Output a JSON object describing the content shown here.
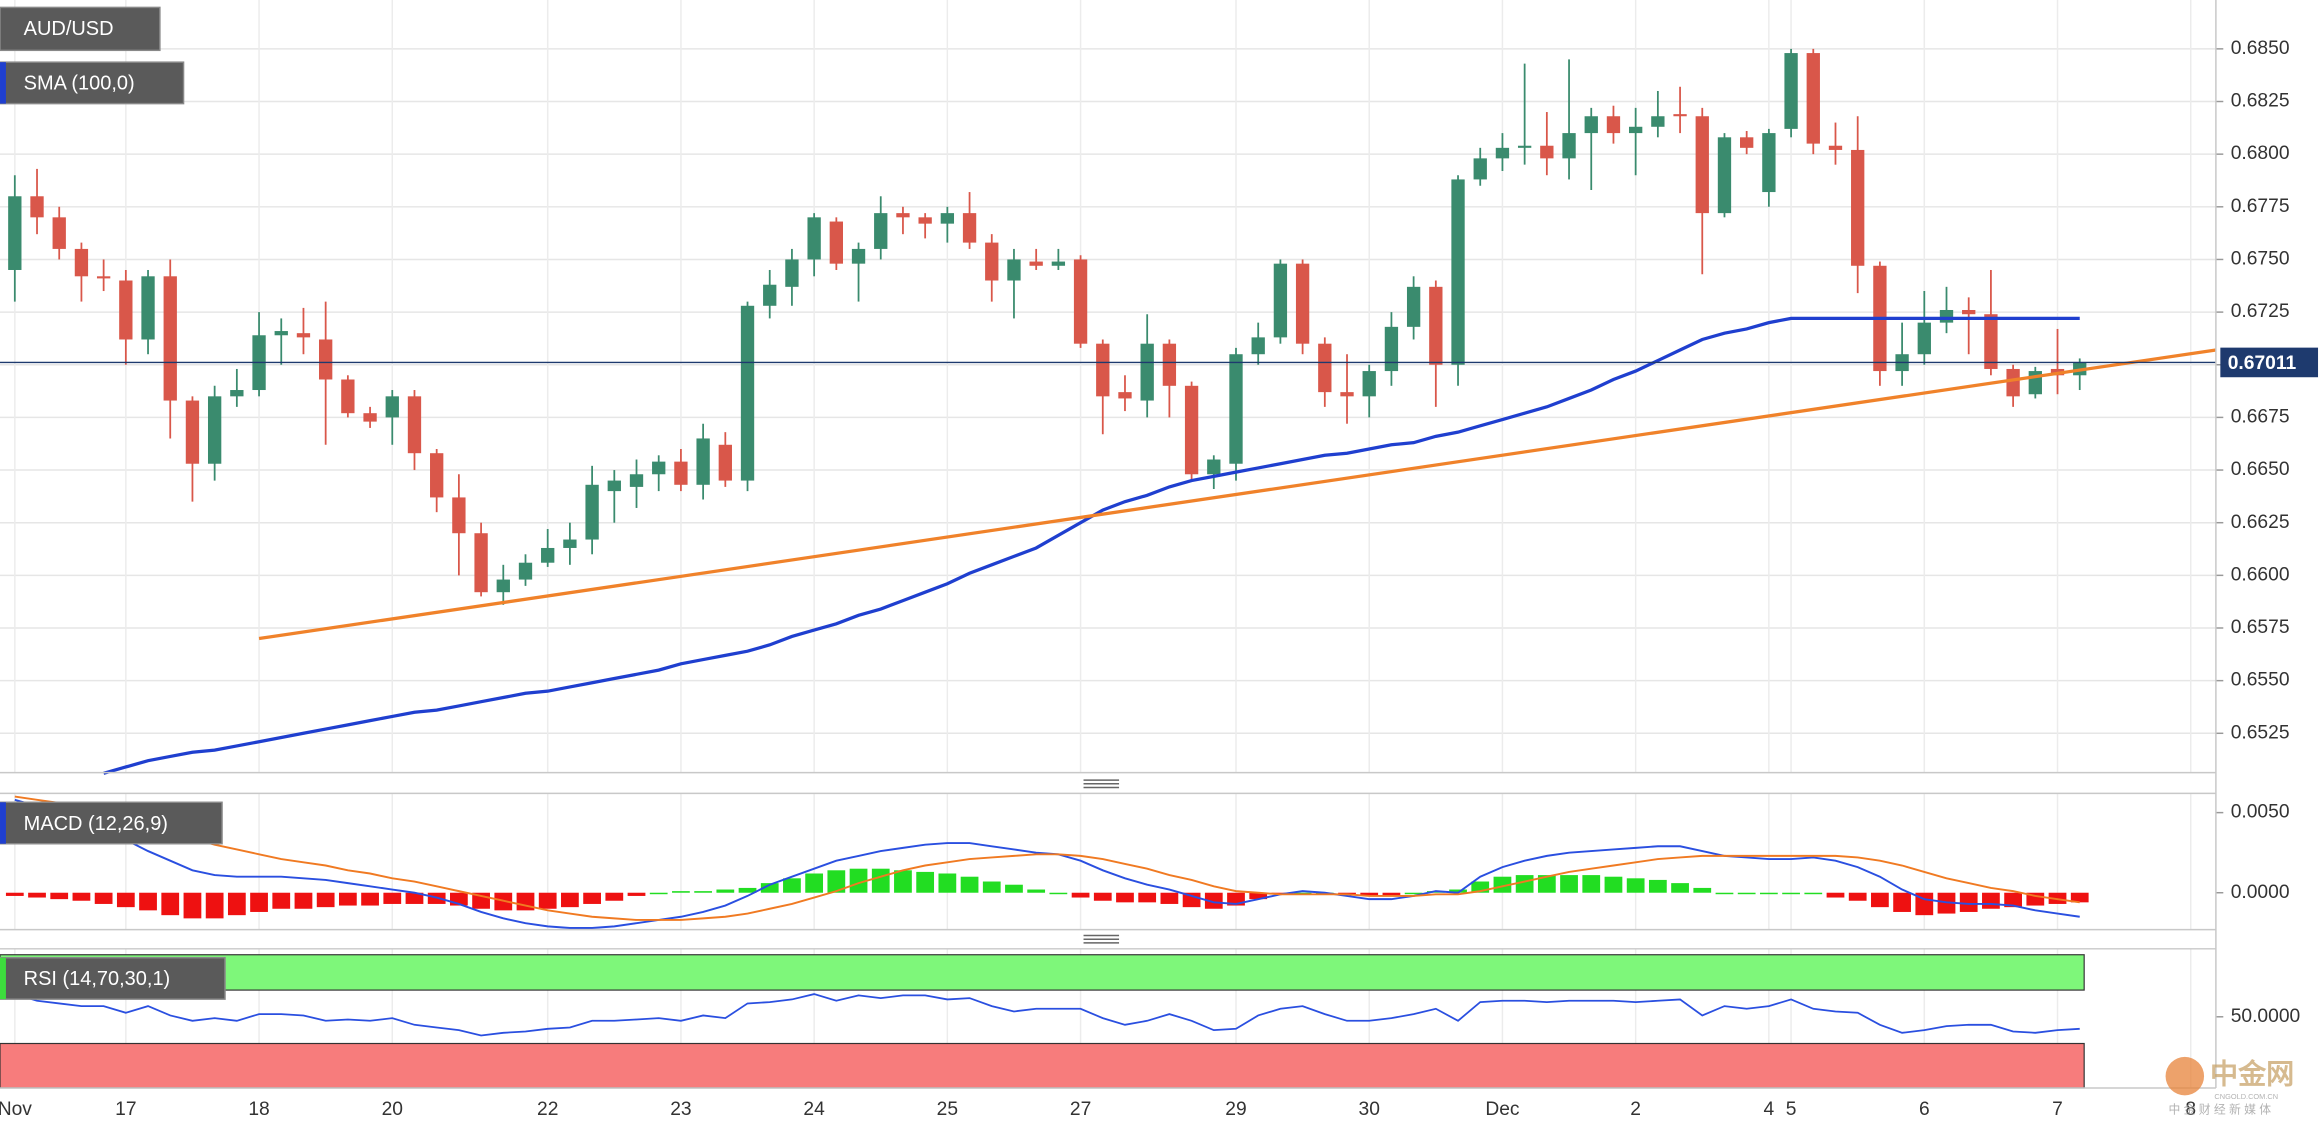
{
  "chart_data": [
    {
      "type": "candlestick",
      "title": "AUD/USD",
      "up_color": "#3a8b6e",
      "down_color": "#d9574a",
      "xlim": [
        -0.667,
        99.133
      ],
      "ylim": [
        0.65063,
        0.68732
      ],
      "yticks": [
        {
          "value": 0.6525,
          "label": "0.6525"
        },
        {
          "value": 0.655,
          "label": "0.6550"
        },
        {
          "value": 0.6575,
          "label": "0.6575"
        },
        {
          "value": 0.66,
          "label": "0.6600"
        },
        {
          "value": 0.6625,
          "label": "0.6625"
        },
        {
          "value": 0.665,
          "label": "0.6650"
        },
        {
          "value": 0.6675,
          "label": "0.6675"
        },
        {
          "value": 0.67,
          "label": "0.6700"
        },
        {
          "value": 0.6725,
          "label": "0.6725"
        },
        {
          "value": 0.675,
          "label": "0.6750"
        },
        {
          "value": 0.6775,
          "label": "0.6775"
        },
        {
          "value": 0.68,
          "label": "0.6800"
        },
        {
          "value": 0.6825,
          "label": "0.6825"
        },
        {
          "value": 0.685,
          "label": "0.6850"
        }
      ],
      "grid": true,
      "last_price": 0.67011,
      "last_price_color": "#1e3a6e",
      "candles": {
        "open": [
          0.6745,
          0.678,
          0.677,
          0.6755,
          0.6742,
          0.674,
          0.6712,
          0.6742,
          0.6683,
          0.6653,
          0.6685,
          0.6688,
          0.6714,
          0.6715,
          0.6712,
          0.6693,
          0.6677,
          0.6675,
          0.6685,
          0.6658,
          0.6637,
          0.662,
          0.6592,
          0.6598,
          0.6606,
          0.6613,
          0.6617,
          0.664,
          0.6642,
          0.6648,
          0.6654,
          0.6643,
          0.6662,
          0.6645,
          0.6728,
          0.6737,
          0.675,
          0.6768,
          0.6748,
          0.6755,
          0.6772,
          0.677,
          0.6767,
          0.6772,
          0.6758,
          0.674,
          0.6749,
          0.6747,
          0.675,
          0.671,
          0.6687,
          0.6683,
          0.671,
          0.669,
          0.6648,
          0.6653,
          0.6705,
          0.6713,
          0.6748,
          0.671,
          0.6687,
          0.6685,
          0.6697,
          0.6718,
          0.6737,
          0.67,
          0.6788,
          0.6798,
          0.6803,
          0.6804,
          0.6798,
          0.681,
          0.6818,
          0.681,
          0.6813,
          0.6819,
          0.6818,
          0.6772,
          0.6808,
          0.6782,
          0.6812,
          0.6848,
          0.6804,
          0.6802,
          0.6747,
          0.6697,
          0.6705,
          0.672,
          0.6726,
          0.6724,
          0.6698,
          0.6686,
          0.6698,
          0.6695
        ],
        "high": [
          0.679,
          0.6793,
          0.6775,
          0.6758,
          0.675,
          0.6745,
          0.6745,
          0.675,
          0.6685,
          0.669,
          0.6698,
          0.6725,
          0.6722,
          0.6727,
          0.673,
          0.6695,
          0.668,
          0.6688,
          0.6688,
          0.666,
          0.6648,
          0.6625,
          0.6605,
          0.661,
          0.6622,
          0.6625,
          0.6652,
          0.665,
          0.6655,
          0.6657,
          0.666,
          0.6672,
          0.6668,
          0.673,
          0.6745,
          0.6755,
          0.6772,
          0.677,
          0.6758,
          0.678,
          0.6775,
          0.6772,
          0.6775,
          0.6782,
          0.6762,
          0.6755,
          0.6755,
          0.6755,
          0.6752,
          0.6712,
          0.6695,
          0.6724,
          0.6712,
          0.6692,
          0.6657,
          0.6708,
          0.672,
          0.675,
          0.675,
          0.6713,
          0.6705,
          0.67,
          0.6725,
          0.6742,
          0.674,
          0.679,
          0.6803,
          0.681,
          0.6843,
          0.682,
          0.6845,
          0.6822,
          0.6823,
          0.6822,
          0.683,
          0.6832,
          0.6822,
          0.681,
          0.6811,
          0.6812,
          0.685,
          0.685,
          0.6815,
          0.6818,
          0.6749,
          0.672,
          0.6735,
          0.6737,
          0.6732,
          0.6745,
          0.67,
          0.6699,
          0.6717,
          0.6703
        ],
        "low": [
          0.673,
          0.6762,
          0.675,
          0.673,
          0.6735,
          0.67,
          0.6705,
          0.6665,
          0.6635,
          0.6645,
          0.668,
          0.6685,
          0.67,
          0.6705,
          0.6662,
          0.6675,
          0.667,
          0.6662,
          0.665,
          0.663,
          0.66,
          0.659,
          0.6586,
          0.6595,
          0.6604,
          0.6605,
          0.661,
          0.6625,
          0.6632,
          0.664,
          0.664,
          0.6636,
          0.6642,
          0.664,
          0.6722,
          0.6728,
          0.6742,
          0.6745,
          0.673,
          0.675,
          0.6762,
          0.676,
          0.6758,
          0.6755,
          0.673,
          0.6722,
          0.6745,
          0.6745,
          0.6708,
          0.6667,
          0.6678,
          0.6675,
          0.6675,
          0.6645,
          0.6641,
          0.6645,
          0.67,
          0.671,
          0.6705,
          0.668,
          0.6672,
          0.6675,
          0.669,
          0.6712,
          0.668,
          0.669,
          0.6785,
          0.6792,
          0.6795,
          0.679,
          0.6788,
          0.6783,
          0.6805,
          0.679,
          0.6808,
          0.681,
          0.6743,
          0.677,
          0.68,
          0.6775,
          0.6808,
          0.68,
          0.6795,
          0.6734,
          0.669,
          0.669,
          0.67,
          0.6715,
          0.6705,
          0.6695,
          0.668,
          0.6684,
          0.6686,
          0.6688
        ],
        "close": [
          0.678,
          0.677,
          0.6755,
          0.6742,
          0.6741,
          0.6712,
          0.6742,
          0.6683,
          0.6653,
          0.6685,
          0.6688,
          0.6714,
          0.6716,
          0.6713,
          0.6693,
          0.6677,
          0.6673,
          0.6685,
          0.6658,
          0.6637,
          0.662,
          0.6592,
          0.6598,
          0.6606,
          0.6613,
          0.6617,
          0.6643,
          0.6645,
          0.6648,
          0.6654,
          0.6643,
          0.6665,
          0.6645,
          0.6728,
          0.6738,
          0.675,
          0.677,
          0.6748,
          0.6755,
          0.6772,
          0.677,
          0.6767,
          0.6772,
          0.6758,
          0.674,
          0.675,
          0.6747,
          0.6749,
          0.671,
          0.6685,
          0.6684,
          0.671,
          0.669,
          0.6648,
          0.6655,
          0.6705,
          0.6713,
          0.6748,
          0.671,
          0.6687,
          0.6685,
          0.6697,
          0.6718,
          0.6737,
          0.67,
          0.6788,
          0.6798,
          0.6803,
          0.6804,
          0.6798,
          0.681,
          0.6818,
          0.681,
          0.6813,
          0.6818,
          0.6818,
          0.6772,
          0.6808,
          0.6803,
          0.681,
          0.6848,
          0.6805,
          0.6802,
          0.6747,
          0.6697,
          0.6705,
          0.672,
          0.6726,
          0.6724,
          0.6698,
          0.6685,
          0.6697,
          0.6695,
          0.6701
        ]
      },
      "series": [
        {
          "name": "SMA (100,0)",
          "color": "#1f3fcf",
          "values": [
            null,
            null,
            null,
            null,
            0.6506,
            0.6509,
            0.6512,
            0.6514,
            0.6516,
            0.6517,
            0.6519,
            0.6521,
            0.6523,
            0.6525,
            0.6527,
            0.6529,
            0.6531,
            0.6533,
            0.6535,
            0.6536,
            0.6538,
            0.654,
            0.6542,
            0.6544,
            0.6545,
            0.6547,
            0.6549,
            0.6551,
            0.6553,
            0.6555,
            0.6558,
            0.656,
            0.6562,
            0.6564,
            0.6567,
            0.6571,
            0.6574,
            0.6577,
            0.6581,
            0.6584,
            0.6588,
            0.6592,
            0.6596,
            0.6601,
            0.6605,
            0.6609,
            0.6613,
            0.6619,
            0.6625,
            0.6631,
            0.6635,
            0.6638,
            0.6642,
            0.6645,
            0.6647,
            0.6649,
            0.6651,
            0.6653,
            0.6655,
            0.6657,
            0.6658,
            0.666,
            0.6662,
            0.6663,
            0.6666,
            0.6668,
            0.6671,
            0.6674,
            0.6677,
            0.668,
            0.6684,
            0.6688,
            0.6693,
            0.6697,
            0.6702,
            0.6707,
            0.6712,
            0.6715,
            0.6717,
            0.672,
            0.6722,
            0.6722,
            0.6722,
            0.6722,
            0.6722,
            0.6722,
            0.6722,
            0.6722,
            0.6722,
            0.6722,
            0.6722,
            0.6722,
            0.6722,
            0.6722
          ]
        },
        {
          "color": "#f0822a",
          "x": [
            11,
            99.133
          ],
          "values": [
            0.657,
            0.6707
          ]
        }
      ]
    },
    {
      "type": "macd",
      "title": "MACD (12,26,9)",
      "xlim": [
        -0.667,
        99.133
      ],
      "ylim": [
        -0.0023,
        0.0062
      ],
      "yticks": [
        {
          "value": 0,
          "label": "0.0000"
        },
        {
          "value": 0.005,
          "label": "0.0050"
        }
      ],
      "up_color": "#22dd22",
      "down_color": "#ee1111",
      "histogram": [
        -0.0002,
        -0.0003,
        -0.0004,
        -0.0005,
        -0.0007,
        -0.0009,
        -0.0011,
        -0.0014,
        -0.0016,
        -0.0016,
        -0.0014,
        -0.0012,
        -0.001,
        -0.001,
        -0.0009,
        -0.0008,
        -0.0008,
        -0.0007,
        -0.0007,
        -0.0007,
        -0.0008,
        -0.001,
        -0.0011,
        -0.0011,
        -0.001,
        -0.0009,
        -0.0007,
        -0.0005,
        -0.0002,
        0,
        0.0001,
        0.0001,
        0.0002,
        0.0003,
        0.0006,
        0.0009,
        0.0012,
        0.0014,
        0.0015,
        0.0015,
        0.0014,
        0.0013,
        0.0012,
        0.001,
        0.0007,
        0.0005,
        0.0002,
        0,
        -0.0003,
        -0.0005,
        -0.0006,
        -0.0006,
        -0.0007,
        -0.0009,
        -0.001,
        -0.0008,
        -0.0004,
        -0.0001,
        0,
        0,
        -0.0001,
        -0.0002,
        -0.0002,
        0,
        0.0001,
        0.0002,
        0.0007,
        0.001,
        0.0011,
        0.0011,
        0.0011,
        0.0011,
        0.001,
        0.0009,
        0.0008,
        0.0006,
        0.0003,
        0,
        0,
        0,
        0,
        0,
        -0.0003,
        -0.0005,
        -0.0009,
        -0.0012,
        -0.0014,
        -0.0013,
        -0.0012,
        -0.001,
        -0.0009,
        -0.0008,
        -0.0007,
        -0.0006
      ],
      "series": [
        {
          "color": "#2a4fe0",
          "values": [
            0.0058,
            0.0054,
            0.005,
            0.0046,
            0.004,
            0.0033,
            0.0026,
            0.002,
            0.0014,
            0.0011,
            0.001,
            0.001,
            0.001,
            0.0009,
            0.0008,
            0.0006,
            0.0004,
            0.0002,
            0,
            -0.0003,
            -0.0007,
            -0.0012,
            -0.0016,
            -0.0019,
            -0.0021,
            -0.0022,
            -0.0022,
            -0.0021,
            -0.0019,
            -0.0017,
            -0.0015,
            -0.0012,
            -0.0008,
            -0.0002,
            0.0005,
            0.001,
            0.0015,
            0.002,
            0.0023,
            0.0026,
            0.0028,
            0.003,
            0.0031,
            0.0031,
            0.0029,
            0.0027,
            0.0025,
            0.0024,
            0.002,
            0.0014,
            0.0009,
            0.0005,
            0.0002,
            -0.0002,
            -0.0006,
            -0.0007,
            -0.0004,
            -0.0001,
            0.0001,
            0,
            -0.0002,
            -0.0004,
            -0.0004,
            -0.0002,
            0.0001,
            0,
            0.001,
            0.0016,
            0.002,
            0.0023,
            0.0025,
            0.0026,
            0.0027,
            0.0028,
            0.0029,
            0.0029,
            0.0026,
            0.0023,
            0.0022,
            0.0021,
            0.0021,
            0.0022,
            0.002,
            0.0016,
            0.001,
            0.0002,
            -0.0004,
            -0.0006,
            -0.0007,
            -0.0007,
            -0.0008,
            -0.0011,
            -0.0013,
            -0.0015
          ]
        },
        {
          "color": "#f07a22",
          "values": [
            0.006,
            0.0058,
            0.0056,
            0.0053,
            0.005,
            0.0046,
            0.0042,
            0.0038,
            0.0034,
            0.003,
            0.0027,
            0.0024,
            0.0021,
            0.0019,
            0.0017,
            0.0014,
            0.0012,
            0.0009,
            0.0007,
            0.0004,
            0.0001,
            -0.0002,
            -0.0005,
            -0.0008,
            -0.0011,
            -0.0013,
            -0.0015,
            -0.0016,
            -0.0017,
            -0.0017,
            -0.0017,
            -0.0016,
            -0.0015,
            -0.0013,
            -0.001,
            -0.0007,
            -0.0003,
            0.0001,
            0.0006,
            0.001,
            0.0014,
            0.0017,
            0.0019,
            0.0021,
            0.0022,
            0.0023,
            0.0024,
            0.0024,
            0.0023,
            0.0021,
            0.0018,
            0.0015,
            0.0011,
            0.0008,
            0.0004,
            0.0001,
            0,
            -0.0001,
            -0.0001,
            -0.0001,
            -0.0001,
            -0.0002,
            -0.0002,
            -0.0002,
            -0.0001,
            -0.0001,
            0.0001,
            0.0004,
            0.0007,
            0.001,
            0.0013,
            0.0015,
            0.0017,
            0.0019,
            0.0021,
            0.0022,
            0.0023,
            0.0023,
            0.0023,
            0.0023,
            0.0023,
            0.0023,
            0.0023,
            0.0022,
            0.002,
            0.0017,
            0.0013,
            0.0009,
            0.0006,
            0.0003,
            0.0001,
            -0.0002,
            -0.0004,
            -0.0006
          ]
        }
      ]
    },
    {
      "type": "rsi",
      "title": "RSI (14,70,30,1)",
      "xlim": [
        -0.667,
        99.133
      ],
      "ylim": [
        -3.3,
        100.9
      ],
      "yticks": [
        {
          "value": 50,
          "label": "50.0000"
        }
      ],
      "overbought": 70,
      "oversold": 30,
      "overbought_color": "#7ef77a",
      "oversold_color": "#f77c7c",
      "xticks": [
        {
          "value": 0,
          "label": "Nov"
        },
        {
          "value": 5,
          "label": "17"
        },
        {
          "value": 11,
          "label": "18"
        },
        {
          "value": 17,
          "label": "20"
        },
        {
          "value": 24,
          "label": "22"
        },
        {
          "value": 30,
          "label": "23"
        },
        {
          "value": 36,
          "label": "24"
        },
        {
          "value": 42,
          "label": "25"
        },
        {
          "value": 48,
          "label": "27"
        },
        {
          "value": 55,
          "label": "29"
        },
        {
          "value": 61,
          "label": "30"
        },
        {
          "value": 67,
          "label": "Dec"
        },
        {
          "value": 73,
          "label": "2"
        },
        {
          "value": 79,
          "label": "4"
        },
        {
          "value": 80,
          "label": "5"
        },
        {
          "value": 86,
          "label": "6"
        },
        {
          "value": 92,
          "label": "7"
        },
        {
          "value": 98,
          "label": "8"
        }
      ],
      "series": [
        {
          "color": "#2a4fe0",
          "values": [
            67,
            62,
            60,
            58,
            58,
            53,
            58,
            51,
            47,
            49,
            47,
            52,
            52,
            51,
            47,
            48,
            47,
            49,
            44,
            42,
            40,
            36,
            38,
            39,
            41,
            42,
            47,
            47,
            48,
            49,
            47,
            51,
            49,
            60,
            61,
            63,
            67,
            62,
            66,
            64,
            66,
            66,
            63,
            64,
            58,
            54,
            56,
            56,
            56,
            49,
            44,
            47,
            52,
            47,
            40,
            41,
            51,
            56,
            58,
            52,
            47,
            47,
            49,
            52,
            56,
            47,
            61,
            62,
            62,
            61,
            62,
            62,
            62,
            61,
            62,
            63,
            51,
            58,
            56,
            58,
            63,
            56,
            54,
            53,
            44,
            38,
            40,
            43,
            44,
            44,
            39,
            38,
            40,
            41
          ]
        }
      ]
    }
  ],
  "watermark": {
    "name": "中金网",
    "site": "CNGOLD.COM.CN",
    "tagline": "中 金 财 经 新 媒 体"
  }
}
